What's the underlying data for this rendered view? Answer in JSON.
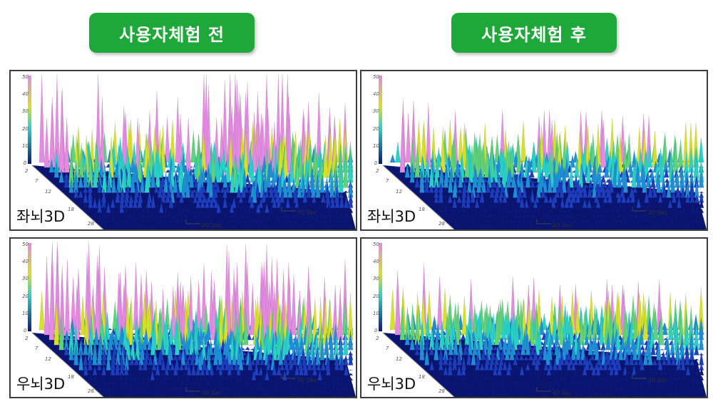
{
  "headers": {
    "before": "사용자체험 전",
    "after": "사용자체험 후"
  },
  "colors": {
    "badge": "#1fa83a",
    "low": "#0a1a7a",
    "mid": "#2bd1c8",
    "high": "#d6e02a",
    "peak": "#e28be0"
  },
  "chart_data": [
    {
      "type": "area",
      "label": "좌뇌3D",
      "condition": "사용자체험 전",
      "z_ticks": [
        "50",
        "40",
        "30",
        "20",
        "10",
        "0"
      ],
      "y_ticks": [
        "2",
        "7",
        "12",
        "18",
        "28"
      ],
      "x_ticks": [
        "30 Sec",
        "60 Sec"
      ],
      "intensity": "high"
    },
    {
      "type": "area",
      "label": "좌뇌3D",
      "condition": "사용자체험 후",
      "z_ticks": [
        "50",
        "40",
        "30",
        "20",
        "10",
        "0"
      ],
      "y_ticks": [
        "2",
        "7",
        "12",
        "18",
        "28"
      ],
      "x_ticks": [
        "30 Sec",
        "60 Sec"
      ],
      "intensity": "low"
    },
    {
      "type": "area",
      "label": "우뇌3D",
      "condition": "사용자체험 전",
      "z_ticks": [
        "50",
        "40",
        "30",
        "20",
        "10",
        "0"
      ],
      "y_ticks": [
        "2",
        "7",
        "12",
        "18",
        "28"
      ],
      "x_ticks": [
        "30 Sec",
        "60 Sec"
      ],
      "intensity": "high"
    },
    {
      "type": "area",
      "label": "우뇌3D",
      "condition": "사용자체험 후",
      "z_ticks": [
        "50",
        "40",
        "30",
        "20",
        "10",
        "0"
      ],
      "y_ticks": [
        "2",
        "7",
        "12",
        "18",
        "28"
      ],
      "x_ticks": [
        "30 Sec",
        "60 Sec"
      ],
      "intensity": "low"
    }
  ]
}
